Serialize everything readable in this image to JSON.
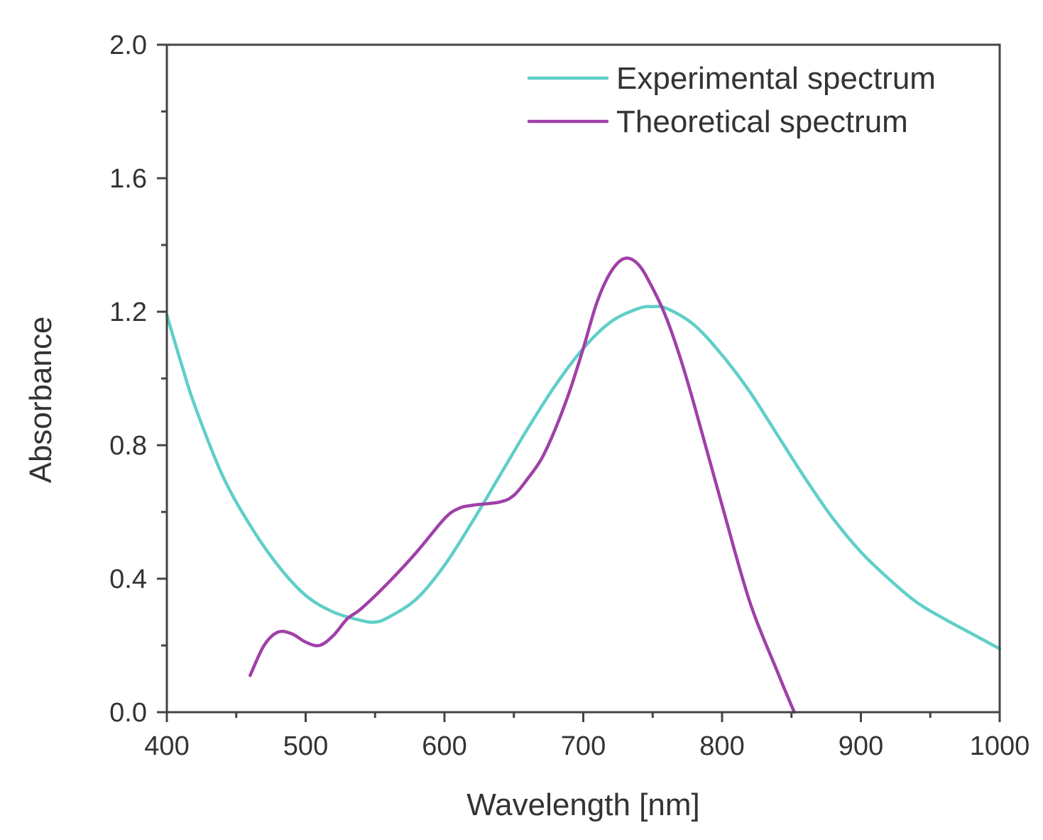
{
  "chart_data": {
    "type": "line",
    "title": "",
    "xlabel": "Wavelength [nm]",
    "ylabel": "Absorbance",
    "xlim": [
      400,
      1000
    ],
    "ylim": [
      0.0,
      2.0
    ],
    "x_ticks": [
      400,
      500,
      600,
      700,
      800,
      900,
      1000
    ],
    "x_tick_labels": [
      "400",
      "500",
      "600",
      "700",
      "800",
      "900",
      "1000"
    ],
    "x_minor_step": 50,
    "y_ticks": [
      0.0,
      0.4,
      0.8,
      1.2,
      1.6,
      2.0
    ],
    "y_tick_labels": [
      "0.0",
      "0.4",
      "0.8",
      "1.2",
      "1.6",
      "2.0"
    ],
    "y_minor_step": 0.2,
    "grid": false,
    "legend_position": "top-right",
    "series": [
      {
        "name": "Experimental spectrum",
        "color": "#5fcfc8",
        "x": [
          400,
          410,
          420,
          440,
          460,
          480,
          500,
          520,
          540,
          550,
          560,
          580,
          600,
          620,
          640,
          660,
          680,
          700,
          720,
          740,
          750,
          760,
          780,
          800,
          820,
          840,
          860,
          880,
          900,
          920,
          940,
          960,
          980,
          1000
        ],
        "y": [
          1.19,
          1.05,
          0.92,
          0.71,
          0.56,
          0.44,
          0.35,
          0.3,
          0.275,
          0.27,
          0.285,
          0.34,
          0.44,
          0.57,
          0.71,
          0.85,
          0.98,
          1.09,
          1.17,
          1.21,
          1.215,
          1.21,
          1.16,
          1.07,
          0.96,
          0.83,
          0.7,
          0.58,
          0.48,
          0.4,
          0.33,
          0.28,
          0.235,
          0.19
        ]
      },
      {
        "name": "Theoretical spectrum",
        "color": "#a040a8",
        "x": [
          460,
          470,
          480,
          490,
          500,
          510,
          520,
          530,
          540,
          560,
          580,
          600,
          610,
          620,
          640,
          650,
          660,
          670,
          680,
          690,
          700,
          710,
          720,
          730,
          740,
          750,
          760,
          770,
          780,
          800,
          820,
          840,
          852
        ],
        "y": [
          0.11,
          0.2,
          0.24,
          0.235,
          0.21,
          0.2,
          0.23,
          0.28,
          0.31,
          0.39,
          0.48,
          0.58,
          0.61,
          0.62,
          0.63,
          0.65,
          0.7,
          0.76,
          0.85,
          0.96,
          1.09,
          1.23,
          1.32,
          1.36,
          1.34,
          1.27,
          1.18,
          1.06,
          0.92,
          0.62,
          0.33,
          0.12,
          0.0
        ]
      }
    ]
  }
}
